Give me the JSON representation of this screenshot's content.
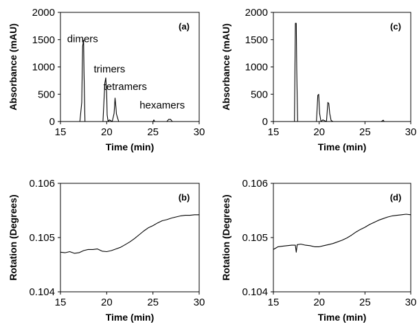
{
  "chart_data": [
    {
      "id": "a",
      "type": "line",
      "panel_label": "(a)",
      "xlabel": "Time (min)",
      "ylabel": "Absorbance (mAU)",
      "xlim": [
        15,
        30
      ],
      "ylim": [
        0,
        2000
      ],
      "xticks": [
        15,
        20,
        25,
        30
      ],
      "yticks": [
        0,
        500,
        1000,
        1500,
        2000
      ],
      "annotations": [
        {
          "text": "dimers",
          "x": 17.4,
          "y": 1450
        },
        {
          "text": "trimers",
          "x": 20.3,
          "y": 900
        },
        {
          "text": "tetramers",
          "x": 22.0,
          "y": 580
        },
        {
          "text": "hexamers",
          "x": 26.0,
          "y": 240
        }
      ],
      "series": [
        {
          "x": [
            15,
            17.1,
            17.3,
            17.4,
            17.5,
            17.55,
            17.65,
            19.6,
            19.8,
            19.9,
            20.0,
            20.05,
            20.15,
            20.3,
            20.6,
            20.8,
            20.9,
            21.0,
            21.05,
            21.15,
            21.3,
            21.6,
            25.0,
            25.1,
            25.2,
            26.5,
            26.7,
            26.9,
            27.1,
            30
          ],
          "y": [
            0,
            0,
            350,
            1380,
            1490,
            900,
            0,
            0,
            700,
            800,
            520,
            120,
            0,
            30,
            0,
            150,
            430,
            260,
            140,
            80,
            0,
            0,
            0,
            30,
            0,
            0,
            40,
            40,
            0,
            0
          ]
        }
      ]
    },
    {
      "id": "c",
      "type": "line",
      "panel_label": "(c)",
      "xlabel": "Time (min)",
      "ylabel": "Absorbance (mAU)",
      "xlim": [
        15,
        30
      ],
      "ylim": [
        0,
        2000
      ],
      "xticks": [
        15,
        20,
        25,
        30
      ],
      "yticks": [
        0,
        500,
        1000,
        1500,
        2000
      ],
      "series": [
        {
          "x": [
            15,
            17.3,
            17.4,
            17.5,
            17.55,
            17.65,
            17.8,
            19.7,
            19.85,
            19.95,
            20.05,
            20.2,
            20.4,
            20.8,
            20.95,
            21.05,
            21.15,
            21.3,
            21.5,
            26.8,
            27.0,
            27.1,
            30
          ],
          "y": [
            0,
            0,
            1800,
            1800,
            950,
            0,
            0,
            0,
            480,
            500,
            150,
            0,
            30,
            0,
            350,
            330,
            150,
            20,
            0,
            0,
            25,
            0,
            0
          ]
        }
      ]
    },
    {
      "id": "b",
      "type": "line",
      "panel_label": "(b)",
      "xlabel": "Time (min)",
      "ylabel": "Rotation (Degrees)",
      "xlim": [
        15,
        30
      ],
      "ylim": [
        0.104,
        0.106
      ],
      "xticks": [
        15,
        20,
        25,
        30
      ],
      "yticks": [
        0.104,
        0.105,
        0.106
      ],
      "ytick_labels": [
        "0.104",
        "0.105",
        "0.106"
      ],
      "series": [
        {
          "x": [
            15,
            15.5,
            16,
            16.5,
            17,
            17.5,
            18,
            18.5,
            19,
            19.5,
            20,
            20.5,
            21,
            21.5,
            22,
            22.5,
            23,
            23.5,
            24,
            24.5,
            25,
            25.5,
            26,
            26.5,
            27,
            27.5,
            28,
            28.5,
            29,
            29.5,
            30
          ],
          "y": [
            0.10473,
            0.10472,
            0.10474,
            0.10471,
            0.10472,
            0.10476,
            0.10478,
            0.10478,
            0.10479,
            0.10475,
            0.10474,
            0.10476,
            0.10479,
            0.10482,
            0.10487,
            0.10492,
            0.10498,
            0.10505,
            0.10512,
            0.10518,
            0.10522,
            0.10527,
            0.10531,
            0.10533,
            0.10536,
            0.10538,
            0.1054,
            0.10541,
            0.10541,
            0.10542,
            0.10542
          ]
        }
      ]
    },
    {
      "id": "d",
      "type": "line",
      "panel_label": "(d)",
      "xlabel": "Time (min)",
      "ylabel": "Rotation (Degrees)",
      "xlim": [
        15,
        30
      ],
      "ylim": [
        0.104,
        0.106
      ],
      "xticks": [
        15,
        20,
        25,
        30
      ],
      "yticks": [
        0.104,
        0.105,
        0.106
      ],
      "ytick_labels": [
        "0.104",
        "0.105",
        "0.106"
      ],
      "series": [
        {
          "x": [
            15,
            15.5,
            16,
            16.5,
            17,
            17.4,
            17.5,
            17.6,
            18,
            18.5,
            19,
            19.5,
            20,
            20.5,
            21,
            21.5,
            22,
            22.5,
            23,
            23.5,
            24,
            24.5,
            25,
            25.5,
            26,
            26.5,
            27,
            27.5,
            28,
            28.5,
            29,
            29.5,
            30
          ],
          "y": [
            0.10478,
            0.10483,
            0.10484,
            0.10485,
            0.10486,
            0.10486,
            0.10473,
            0.10487,
            0.10488,
            0.10486,
            0.10485,
            0.10483,
            0.10483,
            0.10485,
            0.10487,
            0.10489,
            0.10492,
            0.10495,
            0.10499,
            0.10504,
            0.1051,
            0.10515,
            0.10519,
            0.10524,
            0.10528,
            0.10532,
            0.10535,
            0.10538,
            0.1054,
            0.10541,
            0.10542,
            0.10543,
            0.10542
          ]
        }
      ]
    }
  ]
}
